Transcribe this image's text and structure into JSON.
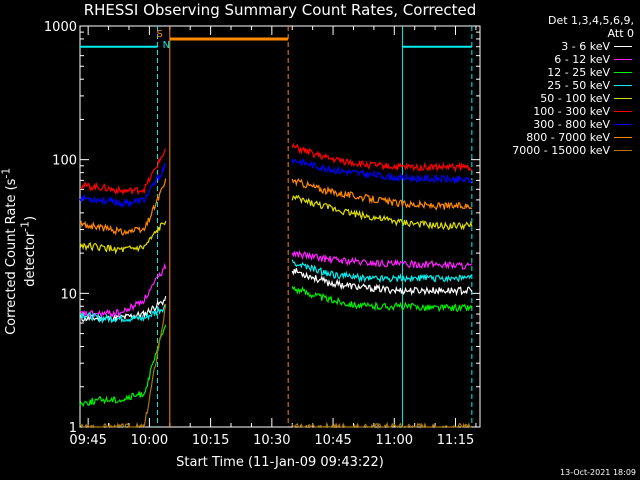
{
  "chart_data": {
    "type": "line",
    "title": "RHESSI Observing Summary Count Rates, Corrected",
    "xlabel": "Start Time (11-Jan-09 09:43:22)",
    "ylabel": "Corrected Count Rate (s",
    "ylabel_sup1": "-1",
    "ylabel_mid": " detector",
    "ylabel_sup2": "-1",
    "ylabel_end": ")",
    "yscale": "log",
    "ylim": [
      1,
      1000
    ],
    "xlim_minutes": [
      "09:43",
      "11:21"
    ],
    "y_ticks": [
      "1",
      "10",
      "100",
      "1000"
    ],
    "x_ticks": [
      "09:45",
      "10:00",
      "10:15",
      "10:30",
      "10:45",
      "11:00",
      "11:15"
    ],
    "detectors": "Det 1,3,4,5,6,9,",
    "attenuator": "Att 0",
    "markers": {
      "saa": "S",
      "night": "N"
    },
    "footer_date": "13-Oct-2021 18:09",
    "series": [
      {
        "name": "3 - 6 keV",
        "color": "#ffffff",
        "before": [
          6.5,
          6.5,
          6.6,
          7.0,
          9.0
        ],
        "after": [
          15,
          12,
          11,
          10.5,
          10.5,
          10.5
        ]
      },
      {
        "name": "6 - 12 keV",
        "color": "#ff22ff",
        "before": [
          7.0,
          7.0,
          7.2,
          9.0,
          16
        ],
        "after": [
          20,
          18,
          17,
          16.5,
          16.5,
          16
        ]
      },
      {
        "name": "12 - 25 keV",
        "color": "#00ee00",
        "before": [
          1.5,
          1.6,
          1.6,
          1.8,
          6
        ],
        "after": [
          11,
          9,
          8,
          8,
          7.8,
          7.8
        ]
      },
      {
        "name": "25 - 50 keV",
        "color": "#00eeee",
        "before": [
          7.0,
          6.5,
          6.5,
          6.5,
          8
        ],
        "after": [
          17,
          14,
          13,
          13,
          13,
          13
        ]
      },
      {
        "name": "50 - 100 keV",
        "color": "#dddd00",
        "before": [
          23,
          22,
          21,
          22,
          35
        ],
        "after": [
          52,
          44,
          38,
          34,
          32,
          32
        ]
      },
      {
        "name": "100 - 300 keV",
        "color": "#ff0000",
        "before": [
          64,
          62,
          58,
          60,
          120
        ],
        "after": [
          125,
          102,
          92,
          88,
          88,
          88
        ]
      },
      {
        "name": "300 - 800 keV",
        "color": "#0000ff",
        "before": [
          52,
          50,
          47,
          50,
          90
        ],
        "after": [
          100,
          85,
          78,
          73,
          72,
          70
        ]
      },
      {
        "name": "800 - 7000 keV",
        "color": "#ff8800",
        "before": [
          33,
          31,
          29,
          30,
          70
        ],
        "after": [
          70,
          58,
          52,
          47,
          45,
          45
        ]
      },
      {
        "name": "7000 - 15000 keV",
        "color": "#aa7700",
        "before": [
          1,
          1,
          1,
          1,
          8
        ],
        "after": [
          1,
          1,
          1,
          1,
          1,
          1
        ]
      }
    ]
  }
}
